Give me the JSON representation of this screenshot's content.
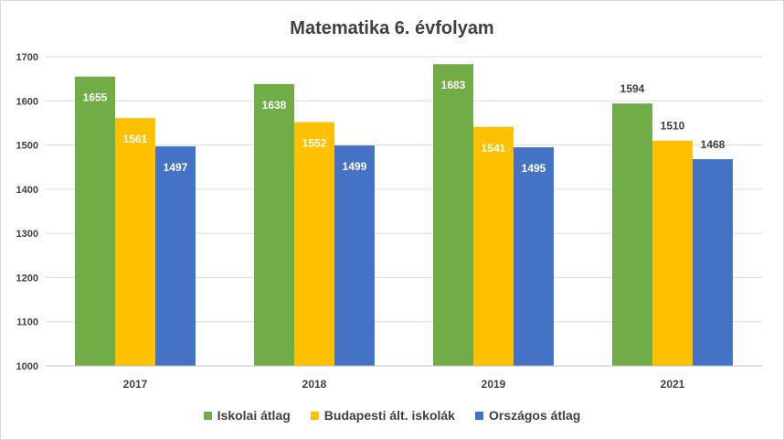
{
  "chart_data": {
    "type": "bar",
    "title": "Matematika 6. évfolyam",
    "xlabel": "",
    "ylabel": "",
    "ylim": [
      1000,
      1700
    ],
    "yticks": [
      "1000",
      "1100",
      "1200",
      "1300",
      "1400",
      "1500",
      "1600",
      "1700"
    ],
    "categories": [
      "2017",
      "2018",
      "2019",
      "2021"
    ],
    "series": [
      {
        "name": "Iskolai átlag",
        "color": "#70ad47",
        "values": [
          1655,
          1638,
          1683,
          1594
        ]
      },
      {
        "name": "Budapesti ált. iskolák",
        "color": "#ffc000",
        "values": [
          1561,
          1552,
          1541,
          1510
        ]
      },
      {
        "name": "Országos átlag",
        "color": "#4472c4",
        "values": [
          1497,
          1499,
          1495,
          1468
        ]
      }
    ],
    "grid": true,
    "legend": "bottom"
  }
}
